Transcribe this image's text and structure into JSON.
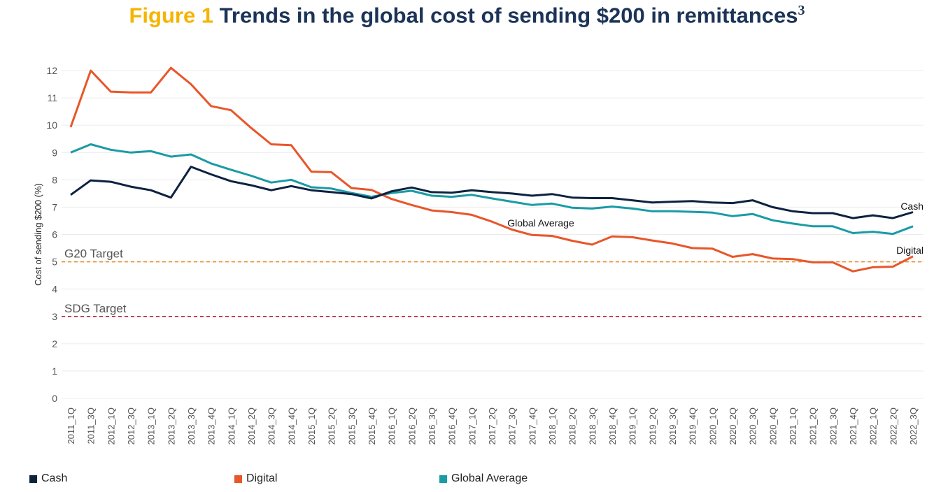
{
  "title": {
    "figure_label": "Figure 1",
    "text": "Trends in the global cost of sending $200 in remittances",
    "footnote": "3"
  },
  "colors": {
    "title_accent": "#f5b400",
    "title": "#1c3358",
    "cash": "#0d2240",
    "digital": "#e8562a",
    "global": "#1a9ba5",
    "g20": "#e8902a",
    "sdg": "#b01c2a"
  },
  "chart_data": {
    "type": "line",
    "title": "Trends in the global cost of sending $200 in remittances",
    "xlabel": "",
    "ylabel": "Cost of sending $200 (%)",
    "ylim": [
      0,
      12
    ],
    "yticks": [
      "0",
      "1",
      "2",
      "3",
      "4",
      "5",
      "6",
      "7",
      "8",
      "9",
      "10",
      "11",
      "12"
    ],
    "grid": true,
    "legend_position": "bottom",
    "categories": [
      "2011_1Q",
      "2011_3Q",
      "2012_1Q",
      "2012_3Q",
      "2013_1Q",
      "2013_2Q",
      "2013_3Q",
      "2013_4Q",
      "2014_1Q",
      "2014_2Q",
      "2014_3Q",
      "2014_4Q",
      "2015_1Q",
      "2015_2Q",
      "2015_3Q",
      "2015_4Q",
      "2016_1Q",
      "2016_2Q",
      "2016_3Q",
      "2016_4Q",
      "2017_1Q",
      "2017_2Q",
      "2017_3Q",
      "2017_4Q",
      "2018_1Q",
      "2018_2Q",
      "2018_3Q",
      "2018_4Q",
      "2019_1Q",
      "2019_2Q",
      "2019_3Q",
      "2019_4Q",
      "2020_1Q",
      "2020_2Q",
      "2020_3Q",
      "2020_4Q",
      "2021_1Q",
      "2021_2Q",
      "2021_3Q",
      "2021_4Q",
      "2022_1Q",
      "2022_2Q",
      "2022_3Q"
    ],
    "series": [
      {
        "name": "Cash",
        "key": "cash",
        "values": [
          7.45,
          7.98,
          7.93,
          7.75,
          7.62,
          7.35,
          8.48,
          8.2,
          7.95,
          7.8,
          7.62,
          7.77,
          7.62,
          7.55,
          7.48,
          7.32,
          7.58,
          7.72,
          7.55,
          7.53,
          7.62,
          7.55,
          7.5,
          7.42,
          7.48,
          7.35,
          7.33,
          7.33,
          7.25,
          7.17,
          7.2,
          7.22,
          7.17,
          7.15,
          7.25,
          7.0,
          6.85,
          6.78,
          6.78,
          6.6,
          6.7,
          6.6,
          6.82
        ]
      },
      {
        "name": "Digital",
        "key": "digital",
        "values": [
          9.93,
          12.0,
          11.23,
          11.2,
          11.2,
          12.1,
          11.5,
          10.7,
          10.55,
          9.9,
          9.3,
          9.27,
          8.3,
          8.28,
          7.7,
          7.63,
          7.3,
          7.08,
          6.88,
          6.82,
          6.72,
          6.47,
          6.18,
          5.98,
          5.95,
          5.77,
          5.63,
          5.93,
          5.9,
          5.78,
          5.67,
          5.5,
          5.48,
          5.18,
          5.28,
          5.12,
          5.1,
          4.98,
          4.98,
          4.65,
          4.8,
          4.82,
          5.2
        ]
      },
      {
        "name": "Global Average",
        "key": "global",
        "values": [
          9.0,
          9.3,
          9.1,
          9.0,
          9.05,
          8.85,
          8.93,
          8.6,
          8.37,
          8.15,
          7.9,
          8.0,
          7.73,
          7.68,
          7.52,
          7.38,
          7.52,
          7.6,
          7.42,
          7.38,
          7.45,
          7.32,
          7.2,
          7.08,
          7.13,
          6.98,
          6.95,
          7.02,
          6.95,
          6.85,
          6.85,
          6.83,
          6.8,
          6.67,
          6.75,
          6.52,
          6.4,
          6.3,
          6.3,
          6.05,
          6.1,
          6.02,
          6.3
        ]
      }
    ],
    "reference_lines": [
      {
        "label": "G20 Target",
        "value": 5,
        "key": "g20"
      },
      {
        "label": "SDG Target",
        "value": 3,
        "key": "sdg"
      }
    ],
    "annotations": [
      {
        "text": "Cash",
        "series": "cash"
      },
      {
        "text": "Digital",
        "series": "digital"
      },
      {
        "text": "Global Average",
        "series": "global"
      }
    ]
  }
}
